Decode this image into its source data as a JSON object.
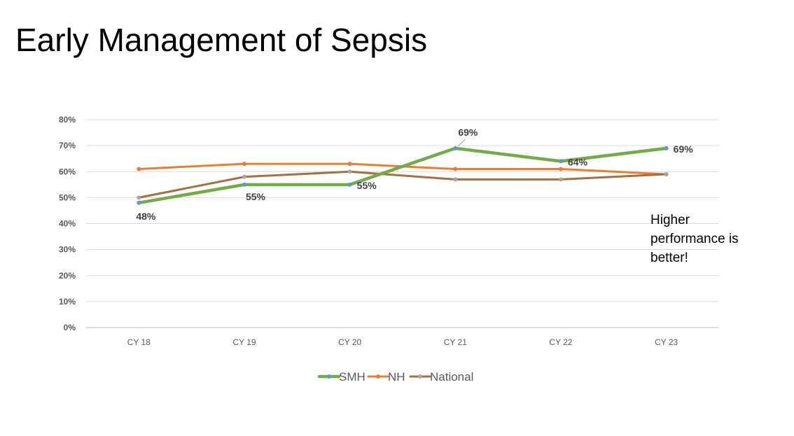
{
  "slide": {
    "title": "Early Management of Sepsis",
    "note": "Higher performance is better!"
  },
  "chart_data": {
    "type": "line",
    "title": "",
    "xlabel": "",
    "ylabel": "",
    "ylim": [
      0,
      80
    ],
    "yticks": [
      0,
      10,
      20,
      30,
      40,
      50,
      60,
      70,
      80
    ],
    "ytick_labels": [
      "0%",
      "10%",
      "20%",
      "30%",
      "40%",
      "50%",
      "60%",
      "70%",
      "80%"
    ],
    "categories": [
      "CY 18",
      "CY 19",
      "CY 20",
      "CY 21",
      "CY 22",
      "CY 23"
    ],
    "series": [
      {
        "name": "SMH",
        "color": "#70ad47",
        "marker_color": "#5b9bd5",
        "values": [
          48,
          55,
          55,
          69,
          64,
          69
        ],
        "labels": [
          "48%",
          "55%",
          "55%",
          "69%",
          "64%",
          "69%"
        ]
      },
      {
        "name": "NH",
        "color": "#ed7d31",
        "marker_color": "#ed7d31",
        "values": [
          61,
          63,
          63,
          61,
          61,
          59
        ],
        "labels": []
      },
      {
        "name": "National",
        "color": "#a5703f",
        "marker_color": "#a5a5a5",
        "values": [
          50,
          58,
          60,
          57,
          57,
          59
        ],
        "labels": []
      }
    ],
    "legend_position": "bottom",
    "grid": true
  }
}
